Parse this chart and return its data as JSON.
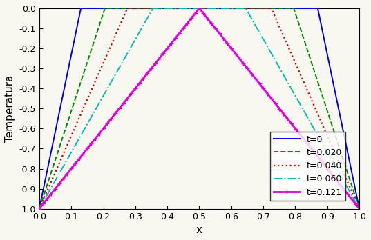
{
  "title": "",
  "xlabel": "x",
  "ylabel": "Temperatura",
  "xlim": [
    0,
    1
  ],
  "ylim": [
    -1.0,
    0.0
  ],
  "xticks": [
    0,
    0.1,
    0.2,
    0.3,
    0.4,
    0.5,
    0.6,
    0.7,
    0.8,
    0.9,
    1.0
  ],
  "yticks": [
    0,
    -0.1,
    -0.2,
    -0.3,
    -0.4,
    -0.5,
    -0.6,
    -0.7,
    -0.8,
    -0.9,
    -1.0
  ],
  "lines": [
    {
      "label": "t=0",
      "color": "#0000ee",
      "linestyle": "-",
      "linewidth": 1.4,
      "marker": null,
      "x_zero_left": 0.13
    },
    {
      "label": "t=0.020",
      "color": "#008800",
      "linestyle": "--",
      "linewidth": 1.4,
      "marker": null,
      "x_zero_left": 0.205
    },
    {
      "label": "t=0.040",
      "color": "#cc0000",
      "linestyle": ":",
      "linewidth": 1.6,
      "marker": null,
      "x_zero_left": 0.275
    },
    {
      "label": "t=0.060",
      "color": "#00bbbb",
      "linestyle": "-.",
      "linewidth": 1.4,
      "marker": null,
      "x_zero_left": 0.355
    },
    {
      "label": "t=0.121",
      "color": "#dd00dd",
      "linestyle": "-",
      "linewidth": 2.0,
      "marker": "+",
      "markevery": 25,
      "markersize": 5,
      "x_zero_left": 0.5
    }
  ],
  "legend_loc": "lower right",
  "figsize": [
    5.37,
    3.48
  ],
  "dpi": 100,
  "bg_color": "#f8f8f0"
}
